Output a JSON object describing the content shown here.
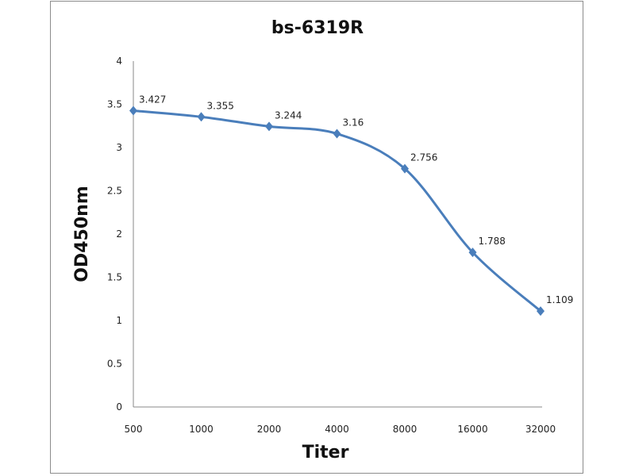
{
  "chart_data": {
    "type": "line",
    "title": "bs-6319R",
    "xlabel": "Titer",
    "ylabel": "OD450nm",
    "categories": [
      "500",
      "1000",
      "2000",
      "4000",
      "8000",
      "16000",
      "32000"
    ],
    "series": [
      {
        "name": "bs-6319R",
        "values": [
          3.427,
          3.355,
          3.244,
          3.16,
          2.756,
          1.788,
          1.109
        ]
      }
    ],
    "data_labels": [
      "3.427",
      "3.355",
      "3.244",
      "3.16",
      "2.756",
      "1.788",
      "1.109"
    ],
    "ylim": [
      0,
      4
    ],
    "yticks": [
      "0",
      "0.5",
      "1",
      "1.5",
      "2",
      "2.5",
      "3",
      "3.5",
      "4"
    ],
    "ytick_values": [
      0,
      0.5,
      1,
      1.5,
      2,
      2.5,
      3,
      3.5,
      4
    ],
    "grid": false,
    "legend": "none",
    "line_color": "#4a7ebb"
  }
}
